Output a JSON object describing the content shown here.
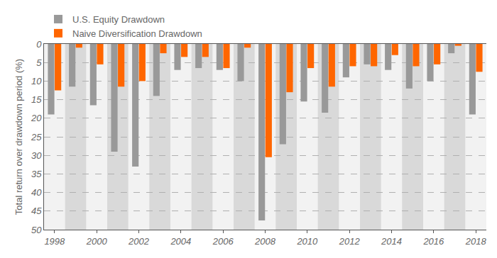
{
  "chart_data": {
    "type": "bar",
    "y_label": "Total return over drawdown period (%)",
    "x": [
      1998,
      1999,
      2000,
      2001,
      2002,
      2003,
      2004,
      2005,
      2006,
      2007,
      2008,
      2009,
      2010,
      2011,
      2012,
      2013,
      2014,
      2015,
      2016,
      2017,
      2018
    ],
    "series": [
      {
        "name": "U.S. Equity Drawdown",
        "color": "#999999",
        "values": [
          19,
          11.5,
          16.5,
          29,
          33,
          14,
          7,
          6.5,
          7,
          10,
          47.5,
          27,
          15.5,
          18.5,
          9,
          5.5,
          7,
          12,
          10,
          2.5,
          19
        ]
      },
      {
        "name": "Naive Diversification Drawdown",
        "color": "#ff6600",
        "values": [
          12.5,
          1,
          5.5,
          11.5,
          10,
          2.5,
          3.5,
          3.5,
          6.5,
          1,
          30.5,
          13,
          6.5,
          11.5,
          6,
          6,
          3,
          6,
          5.5,
          0.5,
          7.5
        ]
      }
    ],
    "xlim": [
      1997.5,
      2018.5
    ],
    "xticks": [
      1998,
      2000,
      2002,
      2004,
      2006,
      2008,
      2010,
      2012,
      2014,
      2016,
      2018
    ],
    "ylim": [
      50,
      0
    ],
    "yticks": [
      0,
      5,
      10,
      15,
      20,
      25,
      30,
      35,
      40,
      45,
      50
    ],
    "grid": true,
    "legend": "top"
  }
}
